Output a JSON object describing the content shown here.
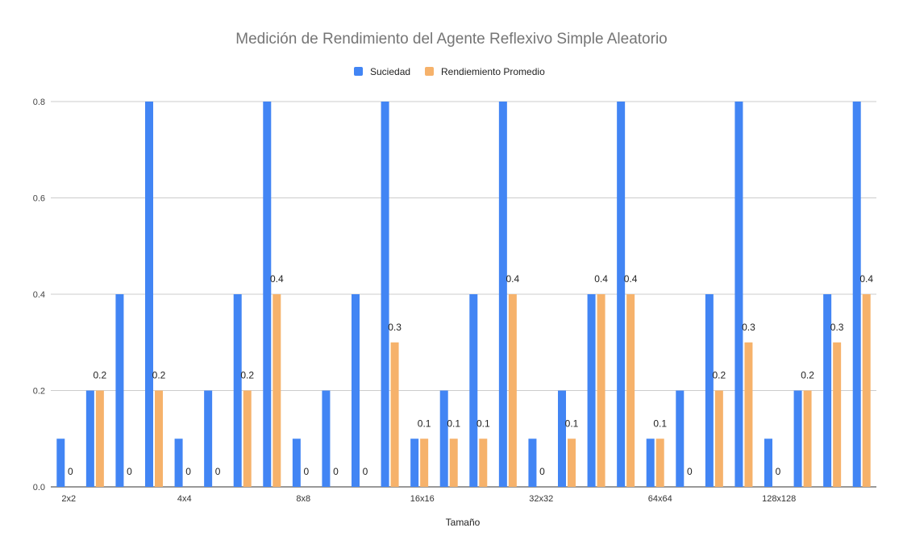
{
  "chart_data": {
    "type": "bar",
    "title": "Medición de Rendimiento del Agente Reflexivo Simple Aleatorio",
    "xlabel": "Tamaño",
    "ylabel": "",
    "ylim": [
      0,
      0.8
    ],
    "yticks": [
      "0.0",
      "0.2",
      "0.4",
      "0.6",
      "0.8"
    ],
    "grid": true,
    "legend_position": "top-center",
    "category_labels": [
      "2x2",
      "4x4",
      "8x8",
      "16x16",
      "32x32",
      "64x64",
      "128x128"
    ],
    "categories_count": 28,
    "tick_label_every": 4,
    "series": [
      {
        "name": "Suciedad",
        "color": "#4285f4",
        "values": [
          0.1,
          0.2,
          0.4,
          0.8,
          0.1,
          0.2,
          0.4,
          0.8,
          0.1,
          0.2,
          0.4,
          0.8,
          0.1,
          0.2,
          0.4,
          0.8,
          0.1,
          0.2,
          0.4,
          0.8,
          0.1,
          0.2,
          0.4,
          0.8,
          0.1,
          0.2,
          0.4,
          0.8
        ]
      },
      {
        "name": "Rendiemiento Promedio",
        "color": "#f6b26b",
        "values": [
          0,
          0.2,
          0,
          0.2,
          0,
          0,
          0.2,
          0.4,
          0,
          0,
          0,
          0.3,
          0.1,
          0.1,
          0.1,
          0.4,
          0,
          0.1,
          0.4,
          0.4,
          0.1,
          0,
          0.2,
          0.3,
          0,
          0.2,
          0.3,
          0.4
        ],
        "data_labels": [
          "0",
          "0.2",
          "0",
          "0.2",
          "0",
          "0",
          "0.2",
          "0.4",
          "0",
          "0",
          "0",
          "0.3",
          "0.1",
          "0.1",
          "0.1",
          "0.4",
          "0",
          "0.1",
          "0.4",
          "0.4",
          "0.1",
          "0",
          "0.2",
          "0.3",
          "0",
          "0.2",
          "0.3",
          "0.4"
        ]
      }
    ]
  }
}
